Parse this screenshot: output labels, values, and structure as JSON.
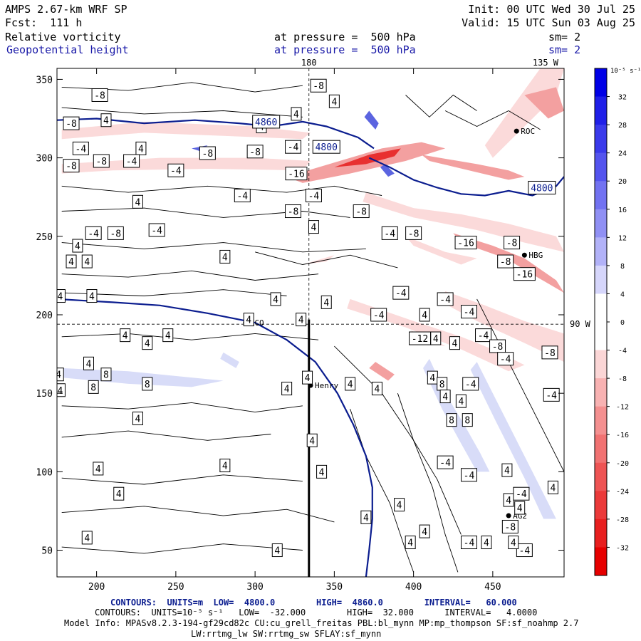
{
  "header": {
    "model": "AMPS 2.67-km WRF SP",
    "init": "Init: 00 UTC Wed 30 Jul 25",
    "fcst": "Fcst:  111 h",
    "valid": "Valid: 15 UTC Sun 03 Aug 25",
    "field1": "Relative vorticity",
    "field1_level": "at pressure =  500 hPa",
    "field1_sm": "sm= 2",
    "field2": "Geopotential height",
    "field2_level": "at pressure =  500 hPa",
    "field2_sm": "sm= 2"
  },
  "footer": {
    "contours1": "CONTOURS:  UNITS=m  LOW=  4800.0        HIGH=  4860.0        INTERVAL=   60.000",
    "contours2": "CONTOURS:  UNITS=10⁻⁵ s⁻¹   LOW=  -32.000        HIGH=  32.000      INTERVAL=   4.0000",
    "model_info": "Model Info: MPASv8.2.3-194-gf29cd82c CU:cu_grell_freitas PBL:bl_mynn MP:mp_thompson SF:sf_noahmp 2.7",
    "model_info2": "LW:rrtmg_lw SW:rrtmg_sw SFLAY:sf_mynn"
  },
  "colors": {
    "height_contour": "#0b1d8f",
    "positive": "#0000ee",
    "negative": "#ff0000"
  },
  "chart_data": {
    "type": "heatmap",
    "title": "Relative vorticity / Geopotential height at 500 hPa",
    "x_ticks": [
      200,
      250,
      300,
      350,
      400,
      450
    ],
    "y_ticks": [
      50,
      100,
      150,
      200,
      250,
      300,
      350
    ],
    "xlim": [
      175,
      495
    ],
    "ylim": [
      33,
      357
    ],
    "grid_lines": {
      "lon_180": {
        "x": 334,
        "label": "180"
      },
      "lat_90W": {
        "y": 194,
        "label": "90 W"
      },
      "lon_135W": {
        "label": "135 W"
      }
    },
    "stations": [
      {
        "name": "NCO",
        "x": 294,
        "y": 195
      },
      {
        "name": "Henry",
        "x": 335,
        "y": 155
      },
      {
        "name": "HBG",
        "x": 470,
        "y": 238
      },
      {
        "name": "AG2",
        "x": 460,
        "y": 72
      },
      {
        "name": "ROC",
        "x": 465,
        "y": 317
      }
    ],
    "height_contours": [
      {
        "value": 4860,
        "label": "4860"
      },
      {
        "value": 4800,
        "label": "4800"
      }
    ],
    "contour_labels": [
      {
        "t": "-8",
        "x": 202,
        "y": 340
      },
      {
        "t": "-8",
        "x": 184,
        "y": 322
      },
      {
        "t": "4",
        "x": 206,
        "y": 324
      },
      {
        "t": "4",
        "x": 228,
        "y": 306
      },
      {
        "t": "-4",
        "x": 190,
        "y": 306
      },
      {
        "t": "-8",
        "x": 184,
        "y": 295
      },
      {
        "t": "-8",
        "x": 203,
        "y": 298
      },
      {
        "t": "-4",
        "x": 222,
        "y": 298
      },
      {
        "t": "-4",
        "x": 250,
        "y": 292
      },
      {
        "t": "-8",
        "x": 270,
        "y": 303
      },
      {
        "t": "-8",
        "x": 300,
        "y": 304
      },
      {
        "t": "4",
        "x": 304,
        "y": 320
      },
      {
        "t": "4",
        "x": 326,
        "y": 328
      },
      {
        "t": "-4",
        "x": 324,
        "y": 307
      },
      {
        "t": "-16",
        "x": 326,
        "y": 290
      },
      {
        "t": "-8",
        "x": 340,
        "y": 346
      },
      {
        "t": "4",
        "x": 350,
        "y": 336
      },
      {
        "t": "-4",
        "x": 292,
        "y": 276
      },
      {
        "t": "4",
        "x": 226,
        "y": 272
      },
      {
        "t": "-8",
        "x": 324,
        "y": 266
      },
      {
        "t": "-4",
        "x": 337,
        "y": 276
      },
      {
        "t": "4",
        "x": 337,
        "y": 256
      },
      {
        "t": "-4",
        "x": 198,
        "y": 252
      },
      {
        "t": "-8",
        "x": 212,
        "y": 252
      },
      {
        "t": "-4",
        "x": 238,
        "y": 254
      },
      {
        "t": "4",
        "x": 188,
        "y": 244
      },
      {
        "t": "4",
        "x": 194,
        "y": 234
      },
      {
        "t": "4",
        "x": 184,
        "y": 234
      },
      {
        "t": "4",
        "x": 281,
        "y": 237
      },
      {
        "t": "-8",
        "x": 367,
        "y": 266
      },
      {
        "t": "-4",
        "x": 385,
        "y": 252
      },
      {
        "t": "-8",
        "x": 400,
        "y": 252
      },
      {
        "t": "-16",
        "x": 433,
        "y": 246
      },
      {
        "t": "-8",
        "x": 462,
        "y": 246
      },
      {
        "t": "-8",
        "x": 458,
        "y": 234
      },
      {
        "t": "-16",
        "x": 470,
        "y": 226
      },
      {
        "t": "4",
        "x": 177,
        "y": 212
      },
      {
        "t": "4",
        "x": 197,
        "y": 212
      },
      {
        "t": "4",
        "x": 313,
        "y": 210
      },
      {
        "t": "-4",
        "x": 392,
        "y": 214
      },
      {
        "t": "-4",
        "x": 420,
        "y": 210
      },
      {
        "t": "-4",
        "x": 435,
        "y": 202
      },
      {
        "t": "4",
        "x": 407,
        "y": 200
      },
      {
        "t": "-4",
        "x": 378,
        "y": 200
      },
      {
        "t": "4",
        "x": 345,
        "y": 208
      },
      {
        "t": "4",
        "x": 296,
        "y": 197
      },
      {
        "t": "4",
        "x": 329,
        "y": 197
      },
      {
        "t": "4",
        "x": 218,
        "y": 187
      },
      {
        "t": "4",
        "x": 232,
        "y": 182
      },
      {
        "t": "4",
        "x": 245,
        "y": 187
      },
      {
        "t": "-12",
        "x": 404,
        "y": 185
      },
      {
        "t": "4",
        "x": 414,
        "y": 185
      },
      {
        "t": "4",
        "x": 426,
        "y": 182
      },
      {
        "t": "-4",
        "x": 444,
        "y": 187
      },
      {
        "t": "-8",
        "x": 453,
        "y": 180
      },
      {
        "t": "-4",
        "x": 458,
        "y": 172
      },
      {
        "t": "-8",
        "x": 486,
        "y": 176
      },
      {
        "t": "4",
        "x": 195,
        "y": 169
      },
      {
        "t": "4",
        "x": 176,
        "y": 162
      },
      {
        "t": "8",
        "x": 206,
        "y": 162
      },
      {
        "t": "8",
        "x": 198,
        "y": 154
      },
      {
        "t": "4",
        "x": 177,
        "y": 152
      },
      {
        "t": "8",
        "x": 232,
        "y": 156
      },
      {
        "t": "4",
        "x": 320,
        "y": 153
      },
      {
        "t": "4",
        "x": 333,
        "y": 160
      },
      {
        "t": "4",
        "x": 360,
        "y": 156
      },
      {
        "t": "4",
        "x": 377,
        "y": 153
      },
      {
        "t": "4",
        "x": 412,
        "y": 160
      },
      {
        "t": "8",
        "x": 418,
        "y": 156
      },
      {
        "t": "4",
        "x": 420,
        "y": 148
      },
      {
        "t": "-4",
        "x": 436,
        "y": 156
      },
      {
        "t": "4",
        "x": 430,
        "y": 145
      },
      {
        "t": "-4",
        "x": 487,
        "y": 149
      },
      {
        "t": "4",
        "x": 226,
        "y": 134
      },
      {
        "t": "8",
        "x": 424,
        "y": 133
      },
      {
        "t": "8",
        "x": 434,
        "y": 133
      },
      {
        "t": "4",
        "x": 201,
        "y": 102
      },
      {
        "t": "4",
        "x": 336,
        "y": 120
      },
      {
        "t": "4",
        "x": 281,
        "y": 104
      },
      {
        "t": "4",
        "x": 342,
        "y": 100
      },
      {
        "t": "-4",
        "x": 420,
        "y": 106
      },
      {
        "t": "-4",
        "x": 435,
        "y": 98
      },
      {
        "t": "4",
        "x": 459,
        "y": 101
      },
      {
        "t": "4",
        "x": 214,
        "y": 86
      },
      {
        "t": "4",
        "x": 488,
        "y": 90
      },
      {
        "t": "4",
        "x": 460,
        "y": 82
      },
      {
        "t": "-4",
        "x": 468,
        "y": 86
      },
      {
        "t": "4",
        "x": 391,
        "y": 79
      },
      {
        "t": "4",
        "x": 467,
        "y": 77
      },
      {
        "t": "4",
        "x": 370,
        "y": 71
      },
      {
        "t": "-8",
        "x": 461,
        "y": 65
      },
      {
        "t": "4",
        "x": 194,
        "y": 58
      },
      {
        "t": "4",
        "x": 314,
        "y": 50
      },
      {
        "t": "4",
        "x": 398,
        "y": 55
      },
      {
        "t": "-4",
        "x": 435,
        "y": 55
      },
      {
        "t": "4",
        "x": 446,
        "y": 55
      },
      {
        "t": "-4",
        "x": 470,
        "y": 50
      },
      {
        "t": "4",
        "x": 463,
        "y": 55
      },
      {
        "t": "4",
        "x": 407,
        "y": 62
      },
      {
        "t": "4860",
        "x": 307,
        "y": 323
      },
      {
        "t": "4800",
        "x": 345,
        "y": 307
      },
      {
        "t": "4800",
        "x": 481,
        "y": 281
      }
    ],
    "colorbar": {
      "unit": "10⁻⁵ s⁻¹",
      "ticks": [
        32,
        28,
        24,
        20,
        16,
        12,
        8,
        4,
        0,
        -4,
        -8,
        -12,
        -16,
        -20,
        -24,
        -28,
        -32
      ],
      "colors": [
        "#0000e6",
        "#1f1fe8",
        "#3a3aeb",
        "#5454ee",
        "#7272f1",
        "#9090f4",
        "#b2b2f8",
        "#d6d6fb",
        "#ffffff",
        "#ffffff",
        "#fbd6d6",
        "#f8b2b2",
        "#f49090",
        "#f17272",
        "#ee5454",
        "#eb3a3a",
        "#e81f1f",
        "#e60000"
      ]
    }
  }
}
